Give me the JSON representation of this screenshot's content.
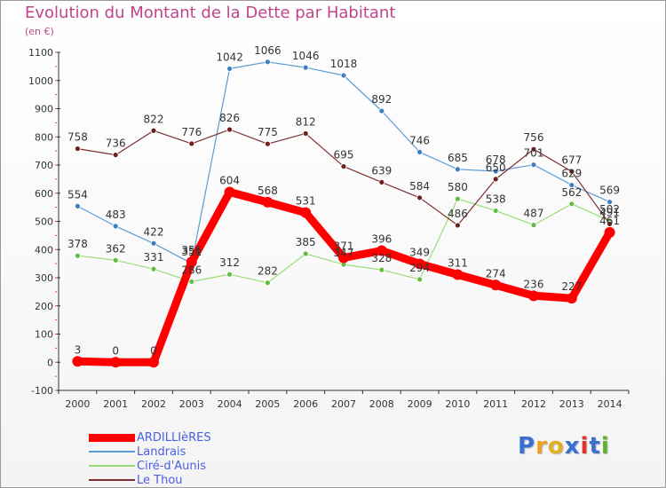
{
  "title": "Evolution du Montant de la Dette par Habitant",
  "unit": "(en €)",
  "logo": "Proxiti",
  "chart_data": {
    "type": "line",
    "x": [
      "2000",
      "2001",
      "2002",
      "2003",
      "2004",
      "2005",
      "2006",
      "2007",
      "2008",
      "2009",
      "2010",
      "2011",
      "2012",
      "2013",
      "2014"
    ],
    "ylim": [
      -100,
      1100
    ],
    "yticks": [
      -100,
      0,
      100,
      200,
      300,
      400,
      500,
      600,
      700,
      800,
      900,
      1000,
      1100
    ],
    "grid": false,
    "legend_position": "bottom-left",
    "series": [
      {
        "name": "Landrais",
        "color": "#5b9bd5",
        "marker": "#3f7fbf",
        "width": 1.2,
        "values": [
          554,
          483,
          422,
          351,
          1042,
          1066,
          1046,
          1018,
          892,
          746,
          685,
          678,
          701,
          629,
          569
        ]
      },
      {
        "name": "Ciré-d'Aunis",
        "color": "#99dd77",
        "marker": "#66bb44",
        "width": 1.2,
        "values": [
          378,
          362,
          331,
          286,
          312,
          282,
          385,
          347,
          328,
          294,
          580,
          538,
          487,
          562,
          502
        ]
      },
      {
        "name": "Le Thou",
        "color": "#7b2f2f",
        "marker": "#6b1f1f",
        "width": 1.2,
        "values": [
          758,
          736,
          822,
          776,
          826,
          775,
          812,
          695,
          639,
          584,
          486,
          650,
          756,
          677,
          491
        ]
      },
      {
        "name": "ARDILLIèRES",
        "color": "#ff0000",
        "marker": "#ff0000",
        "width": 9,
        "values": [
          3,
          0,
          0,
          356,
          604,
          568,
          531,
          371,
          396,
          349,
          311,
          274,
          236,
          227,
          461
        ]
      }
    ],
    "legend": [
      "ARDILLIèRES",
      "Landrais",
      "Ciré-d'Aunis",
      "Le Thou"
    ],
    "labels": [
      {
        "text": "554",
        "x": "2000",
        "y": 554
      },
      {
        "text": "483",
        "x": "2001",
        "y": 483
      },
      {
        "text": "422",
        "x": "2002",
        "y": 422
      },
      {
        "text": "351",
        "x": "2003",
        "y": 351
      },
      {
        "text": "1042",
        "x": "2004",
        "y": 1042
      },
      {
        "text": "1066",
        "x": "2005",
        "y": 1066
      },
      {
        "text": "1046",
        "x": "2006",
        "y": 1046
      },
      {
        "text": "1018",
        "x": "2007",
        "y": 1018
      },
      {
        "text": "892",
        "x": "2008",
        "y": 892
      },
      {
        "text": "746",
        "x": "2009",
        "y": 746
      },
      {
        "text": "685",
        "x": "2010",
        "y": 685
      },
      {
        "text": "678",
        "x": "2011",
        "y": 678
      },
      {
        "text": "701",
        "x": "2012",
        "y": 701
      },
      {
        "text": "629",
        "x": "2013",
        "y": 629
      },
      {
        "text": "569",
        "x": "2014",
        "y": 569
      },
      {
        "text": "378",
        "x": "2000",
        "y": 378
      },
      {
        "text": "362",
        "x": "2001",
        "y": 362
      },
      {
        "text": "331",
        "x": "2002",
        "y": 331
      },
      {
        "text": "286",
        "x": "2003",
        "y": 286
      },
      {
        "text": "312",
        "x": "2004",
        "y": 312
      },
      {
        "text": "282",
        "x": "2005",
        "y": 282
      },
      {
        "text": "385",
        "x": "2006",
        "y": 385
      },
      {
        "text": "347",
        "x": "2007",
        "y": 347
      },
      {
        "text": "328",
        "x": "2008",
        "y": 328
      },
      {
        "text": "294",
        "x": "2009",
        "y": 294
      },
      {
        "text": "580",
        "x": "2010",
        "y": 580
      },
      {
        "text": "538",
        "x": "2011",
        "y": 538
      },
      {
        "text": "487",
        "x": "2012",
        "y": 487
      },
      {
        "text": "562",
        "x": "2013",
        "y": 562
      },
      {
        "text": "502",
        "x": "2014",
        "y": 502
      },
      {
        "text": "758",
        "x": "2000",
        "y": 758
      },
      {
        "text": "736",
        "x": "2001",
        "y": 736
      },
      {
        "text": "822",
        "x": "2002",
        "y": 822
      },
      {
        "text": "776",
        "x": "2003",
        "y": 776
      },
      {
        "text": "826",
        "x": "2004",
        "y": 826
      },
      {
        "text": "775",
        "x": "2005",
        "y": 775
      },
      {
        "text": "812",
        "x": "2006",
        "y": 812
      },
      {
        "text": "695",
        "x": "2007",
        "y": 695
      },
      {
        "text": "639",
        "x": "2008",
        "y": 639
      },
      {
        "text": "584",
        "x": "2009",
        "y": 584
      },
      {
        "text": "486",
        "x": "2010",
        "y": 486
      },
      {
        "text": "650",
        "x": "2011",
        "y": 650
      },
      {
        "text": "756",
        "x": "2012",
        "y": 756
      },
      {
        "text": "677",
        "x": "2013",
        "y": 677
      },
      {
        "text": "491",
        "x": "2014",
        "y": 491
      },
      {
        "text": "3",
        "x": "2000",
        "y": 3
      },
      {
        "text": "0",
        "x": "2001",
        "y": 0
      },
      {
        "text": "0",
        "x": "2002",
        "y": 0
      },
      {
        "text": "356",
        "x": "2003",
        "y": 356
      },
      {
        "text": "604",
        "x": "2004",
        "y": 604
      },
      {
        "text": "568",
        "x": "2005",
        "y": 568
      },
      {
        "text": "531",
        "x": "2006",
        "y": 531
      },
      {
        "text": "371",
        "x": "2007",
        "y": 371
      },
      {
        "text": "396",
        "x": "2008",
        "y": 396
      },
      {
        "text": "349",
        "x": "2009",
        "y": 349
      },
      {
        "text": "311",
        "x": "2010",
        "y": 311
      },
      {
        "text": "274",
        "x": "2011",
        "y": 274
      },
      {
        "text": "236",
        "x": "2012",
        "y": 236
      },
      {
        "text": "227",
        "x": "2013",
        "y": 227
      },
      {
        "text": "461",
        "x": "2014",
        "y": 461
      }
    ]
  }
}
